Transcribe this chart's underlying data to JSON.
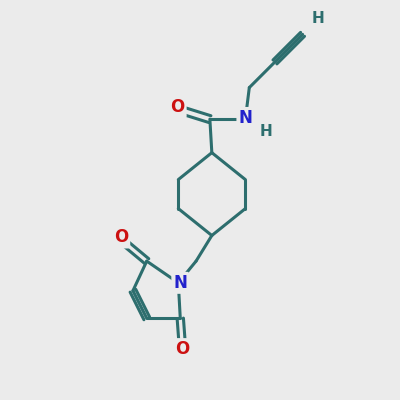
{
  "background_color": "#ebebeb",
  "bond_color": "#2d6e6e",
  "bond_width": 2.2,
  "N_color": "#2222cc",
  "O_color": "#cc1111",
  "H_color": "#2d6e6e",
  "font_size_atom": 12,
  "figsize": [
    4.0,
    4.0
  ],
  "dpi": 100,
  "xlim": [
    0,
    10
  ],
  "ylim": [
    0,
    10
  ]
}
